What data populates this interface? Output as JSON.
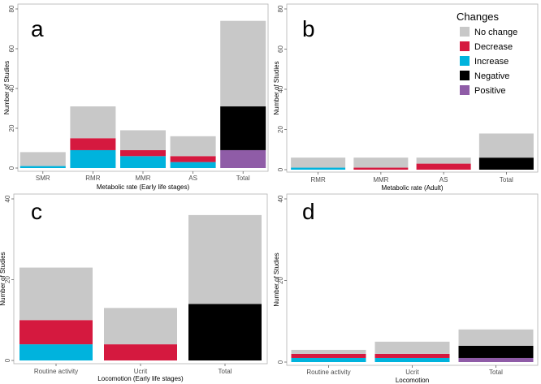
{
  "colors": {
    "No change": "#c8c8c8",
    "Decrease": "#d5193f",
    "Increase": "#00b3dd",
    "Negative": "#000000",
    "Positive": "#8f5ca7"
  },
  "legend": {
    "title": "Changes",
    "items": [
      "No change",
      "Decrease",
      "Increase",
      "Negative",
      "Positive"
    ]
  },
  "chart_data": [
    {
      "type": "bar",
      "stacked": true,
      "panel": "a",
      "xlabel": "Metabolic rate (Early life stages)",
      "ylabel": "Number of Studies",
      "ylim": [
        0,
        80
      ],
      "yticks": [
        0,
        20,
        40,
        60,
        80
      ],
      "categories": [
        "SMR",
        "RMR",
        "MMR",
        "AS",
        "Total"
      ],
      "series": [
        {
          "name": "Increase",
          "values": [
            1,
            9,
            6,
            3,
            0
          ]
        },
        {
          "name": "Positive",
          "values": [
            0,
            0,
            0,
            0,
            9
          ]
        },
        {
          "name": "Decrease",
          "values": [
            0,
            6,
            3,
            3,
            0
          ]
        },
        {
          "name": "Negative",
          "values": [
            0,
            0,
            0,
            0,
            22
          ]
        },
        {
          "name": "No change",
          "values": [
            7,
            16,
            10,
            10,
            43
          ]
        }
      ]
    },
    {
      "type": "bar",
      "stacked": true,
      "panel": "b",
      "xlabel": "Metabolic rate (Adult)",
      "ylabel": "Number of Studies",
      "ylim": [
        0,
        80
      ],
      "yticks": [
        0,
        20,
        40,
        60,
        80
      ],
      "categories": [
        "RMR",
        "MMR",
        "AS",
        "Total"
      ],
      "series": [
        {
          "name": "Increase",
          "values": [
            1,
            0,
            0,
            0
          ]
        },
        {
          "name": "Positive",
          "values": [
            0,
            0,
            0,
            0
          ]
        },
        {
          "name": "Decrease",
          "values": [
            0,
            1,
            3,
            0
          ]
        },
        {
          "name": "Negative",
          "values": [
            0,
            0,
            0,
            6
          ]
        },
        {
          "name": "No change",
          "values": [
            5,
            5,
            3,
            12
          ]
        }
      ]
    },
    {
      "type": "bar",
      "stacked": true,
      "panel": "c",
      "xlabel": "Locomotion (Early life stages)",
      "ylabel": "Number of Studies",
      "ylim": [
        0,
        40
      ],
      "yticks": [
        0,
        20,
        40
      ],
      "categories": [
        "Routine activity",
        "Ucrit",
        "Total"
      ],
      "series": [
        {
          "name": "Increase",
          "values": [
            4,
            0,
            0
          ]
        },
        {
          "name": "Positive",
          "values": [
            0,
            0,
            0
          ]
        },
        {
          "name": "Decrease",
          "values": [
            6,
            4,
            0
          ]
        },
        {
          "name": "Negative",
          "values": [
            0,
            0,
            14
          ]
        },
        {
          "name": "No change",
          "values": [
            13,
            9,
            22
          ]
        }
      ]
    },
    {
      "type": "bar",
      "stacked": true,
      "panel": "d",
      "xlabel": "Locomotion",
      "ylabel": "Number of Studies",
      "ylim": [
        0,
        40
      ],
      "yticks": [
        0,
        20,
        40
      ],
      "categories": [
        "Routine activity",
        "Ucrit",
        "Total"
      ],
      "series": [
        {
          "name": "Increase",
          "values": [
            1,
            1,
            0
          ]
        },
        {
          "name": "Positive",
          "values": [
            0,
            0,
            1
          ]
        },
        {
          "name": "Decrease",
          "values": [
            1,
            1,
            0
          ]
        },
        {
          "name": "Negative",
          "values": [
            0,
            0,
            3
          ]
        },
        {
          "name": "No change",
          "values": [
            1,
            3,
            4
          ]
        }
      ]
    }
  ]
}
